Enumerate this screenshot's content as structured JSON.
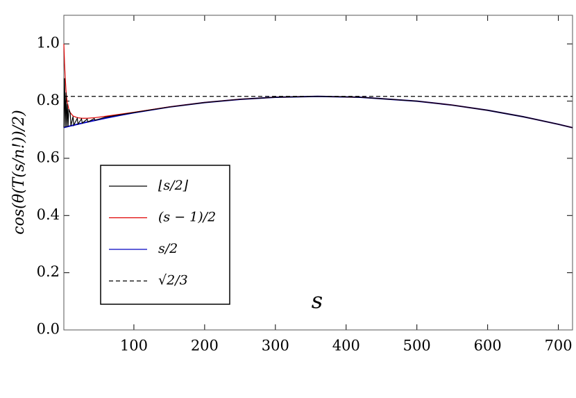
{
  "chart_data": {
    "type": "line",
    "xlabel": "s",
    "ylabel": "cos(θ(T(s/n!))/2)",
    "xlim": [
      1,
      720
    ],
    "ylim": [
      0,
      1.1
    ],
    "xticks": [
      100,
      200,
      300,
      400,
      500,
      600,
      700
    ],
    "yticks": [
      {
        "value": 0,
        "label": "0.0"
      },
      0.2,
      0.4,
      0.6,
      0.8,
      {
        "value": 1,
        "label": "1.0"
      }
    ],
    "legend": "lower left",
    "series": [
      {
        "name": "⌊s/2⌋",
        "color": "#000000",
        "dash": false,
        "x": [
          1,
          2,
          3,
          4,
          5,
          6,
          7,
          8,
          10,
          11,
          14,
          15,
          20,
          21,
          26,
          27,
          34,
          35,
          44,
          45,
          60,
          80,
          100,
          150,
          200,
          250,
          300,
          360,
          420,
          500,
          550,
          600,
          650,
          700,
          720
        ],
        "values": [
          0.7077,
          0.88,
          0.709,
          0.83,
          0.71,
          0.79,
          0.711,
          0.772,
          0.758,
          0.714,
          0.746,
          0.716,
          0.74,
          0.7195,
          0.738,
          0.723,
          0.737,
          0.727,
          0.739,
          0.733,
          0.744,
          0.752,
          0.76,
          0.7793,
          0.7949,
          0.8063,
          0.8135,
          0.8165,
          0.8135,
          0.7999,
          0.786,
          0.7679,
          0.7455,
          0.7189,
          0.7071
        ]
      },
      {
        "name": "(s − 1)/2",
        "color": "#e00000",
        "dash": false,
        "x": [
          1,
          2,
          3,
          4,
          5,
          6,
          8,
          10,
          14,
          20,
          26,
          34,
          45,
          60,
          80,
          100,
          150,
          200,
          250,
          300,
          360,
          420,
          500,
          550,
          600,
          650,
          700,
          720
        ],
        "values": [
          1.0,
          0.93,
          0.88,
          0.84,
          0.81,
          0.795,
          0.772,
          0.76,
          0.748,
          0.742,
          0.74,
          0.74,
          0.742,
          0.747,
          0.754,
          0.761,
          0.7798,
          0.7952,
          0.8065,
          0.8136,
          0.8166,
          0.8136,
          0.8,
          0.7861,
          0.768,
          0.7456,
          0.719,
          0.7072
        ]
      },
      {
        "name": "s/2",
        "color": "#0000c0",
        "dash": false,
        "x": [
          1,
          2,
          3,
          4,
          5,
          6,
          8,
          10,
          14,
          20,
          26,
          34,
          45,
          60,
          80,
          100,
          150,
          200,
          250,
          300,
          360,
          420,
          500,
          550,
          600,
          650,
          700,
          720
        ],
        "values": [
          0.7077,
          0.7083,
          0.7089,
          0.7095,
          0.7101,
          0.7107,
          0.7119,
          0.7131,
          0.7154,
          0.7189,
          0.7223,
          0.7268,
          0.7327,
          0.7405,
          0.7503,
          0.7594,
          0.7793,
          0.7949,
          0.8063,
          0.8135,
          0.8165,
          0.8135,
          0.7999,
          0.786,
          0.7679,
          0.7455,
          0.7189,
          0.7071
        ]
      },
      {
        "name": "√2/3",
        "color": "#000000",
        "dash": true,
        "x": [
          1,
          720
        ],
        "values": [
          0.8165,
          0.8165
        ]
      }
    ]
  }
}
